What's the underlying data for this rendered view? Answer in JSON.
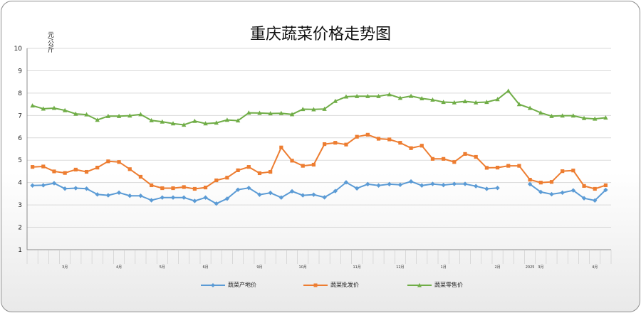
{
  "chart_data": {
    "type": "line",
    "title": "重庆蔬菜价格走势图",
    "ylabel": "元/公斤",
    "ylim": [
      1,
      10
    ],
    "yticks": [
      1,
      2,
      3,
      4,
      5,
      6,
      7,
      8,
      9,
      10
    ],
    "grid": true,
    "legend_position": "bottom",
    "month_labels": [
      {
        "label": "3月",
        "index": 3
      },
      {
        "label": "4月",
        "index": 8
      },
      {
        "label": "5月",
        "index": 12
      },
      {
        "label": "6月",
        "index": 16
      },
      {
        "label": "9月",
        "index": 21
      },
      {
        "label": "10月",
        "index": 25
      },
      {
        "label": "11月",
        "index": 30
      },
      {
        "label": "12月",
        "index": 34
      },
      {
        "label": "1月",
        "index": 38
      },
      {
        "label": "2月",
        "index": 43
      },
      {
        "label": "2025",
        "index": 46
      },
      {
        "label": "3月",
        "index": 47
      },
      {
        "label": "4月",
        "index": 52
      }
    ],
    "series": [
      {
        "name": "蔬菜产地价",
        "color": "#5b9bd5",
        "marker": "diamond",
        "values": [
          3.87,
          3.88,
          3.97,
          3.73,
          3.75,
          3.73,
          3.47,
          3.43,
          3.55,
          3.41,
          3.41,
          3.21,
          3.33,
          3.33,
          3.33,
          3.18,
          3.33,
          3.06,
          3.28,
          3.68,
          3.76,
          3.46,
          3.54,
          3.33,
          3.61,
          3.43,
          3.46,
          3.34,
          3.62,
          4.01,
          3.74,
          3.93,
          3.87,
          3.93,
          3.9,
          4.05,
          3.87,
          3.94,
          3.89,
          3.94,
          3.94,
          3.84,
          3.72,
          3.76,
          null,
          null,
          3.93,
          3.58,
          3.48,
          3.55,
          3.65,
          3.3,
          3.2,
          3.67
        ]
      },
      {
        "name": "蔬菜批发价",
        "color": "#ed7d31",
        "marker": "square",
        "values": [
          4.7,
          4.72,
          4.5,
          4.43,
          4.58,
          4.48,
          4.67,
          4.95,
          4.92,
          4.6,
          4.26,
          3.88,
          3.75,
          3.75,
          3.8,
          3.72,
          3.78,
          4.1,
          4.22,
          4.55,
          4.7,
          4.42,
          4.48,
          5.57,
          4.98,
          4.75,
          4.8,
          5.72,
          5.78,
          5.7,
          6.05,
          6.14,
          5.96,
          5.93,
          5.78,
          5.54,
          5.65,
          5.06,
          5.06,
          4.92,
          5.28,
          5.15,
          4.66,
          4.67,
          4.75,
          4.75,
          4.13,
          4.0,
          4.03,
          4.51,
          4.54,
          3.85,
          3.72,
          3.88
        ]
      },
      {
        "name": "蔬菜零售价",
        "color": "#70ad47",
        "marker": "triangle",
        "values": [
          7.44,
          7.3,
          7.33,
          7.23,
          7.07,
          7.04,
          6.8,
          6.97,
          6.97,
          6.99,
          7.05,
          6.78,
          6.72,
          6.64,
          6.58,
          6.75,
          6.64,
          6.67,
          6.8,
          6.77,
          7.12,
          7.11,
          7.09,
          7.1,
          7.05,
          7.28,
          7.27,
          7.29,
          7.64,
          7.84,
          7.86,
          7.86,
          7.86,
          7.94,
          7.78,
          7.87,
          7.76,
          7.7,
          7.6,
          7.58,
          7.63,
          7.58,
          7.6,
          7.72,
          8.1,
          7.5,
          7.33,
          7.12,
          6.97,
          6.99,
          6.99,
          6.88,
          6.85,
          6.9
        ]
      }
    ]
  }
}
